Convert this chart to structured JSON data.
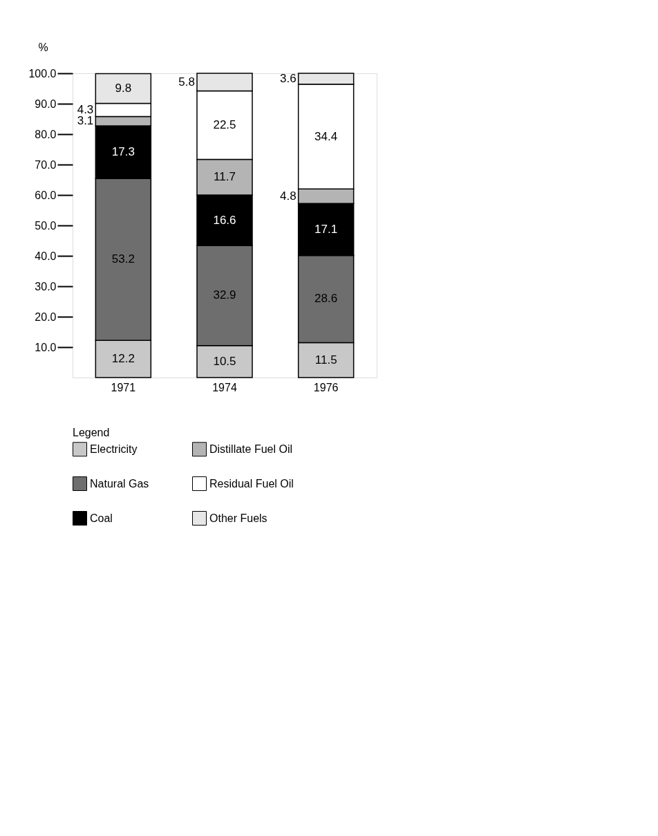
{
  "chart_data": {
    "type": "bar",
    "stacked": true,
    "ylabel": "%",
    "legend_title": "Legend",
    "legend": "bottom",
    "categories": [
      "1971",
      "1974",
      "1976"
    ],
    "series": [
      {
        "name": "Electricity",
        "color": "#c8c8c8",
        "values": [
          12.2,
          10.5,
          11.5
        ]
      },
      {
        "name": "Natural Gas",
        "color": "#6e6e6e",
        "values": [
          53.2,
          32.9,
          28.6
        ]
      },
      {
        "name": "Coal",
        "color": "#000000",
        "values": [
          17.3,
          16.6,
          17.1
        ]
      },
      {
        "name": "Distillate Fuel Oil",
        "color": "#b4b4b4",
        "values": [
          3.1,
          11.7,
          4.8
        ]
      },
      {
        "name": "Residual Fuel Oil",
        "color": "#ffffff",
        "values": [
          4.3,
          22.5,
          34.4
        ]
      },
      {
        "name": "Other Fuels",
        "color": "#e6e6e6",
        "values": [
          9.8,
          5.8,
          3.6
        ]
      }
    ],
    "ylim": [
      0,
      100
    ],
    "yticks": [
      {
        "value": 10,
        "label": "10.0"
      },
      {
        "value": 20,
        "label": "20.0"
      },
      {
        "value": 30,
        "label": "30.0"
      },
      {
        "value": 40,
        "label": "40.0"
      },
      {
        "value": 50,
        "label": "50.0"
      },
      {
        "value": 60,
        "label": "60.0"
      },
      {
        "value": 70,
        "label": "70.0"
      },
      {
        "value": 80,
        "label": "80.0"
      },
      {
        "value": 90,
        "label": "90.0"
      },
      {
        "value": 100,
        "label": "100.0"
      }
    ],
    "grid": false,
    "data_labels": true
  }
}
